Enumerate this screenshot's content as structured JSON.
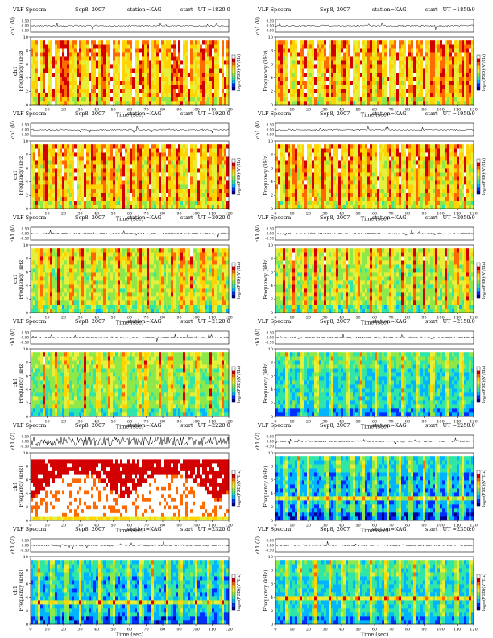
{
  "figure": {
    "title_prefix": "VLF Spectra",
    "date": "Sep8, 2007",
    "station": "station=KAG",
    "start_label": "start",
    "ut_label": "UT ="
  },
  "colors": {
    "cmap": [
      "#00008f",
      "#0030ff",
      "#00b4ff",
      "#2fe6a8",
      "#8fe84a",
      "#e6f03a",
      "#ffd400",
      "#ff6a00",
      "#d20000",
      "#ffffff"
    ],
    "waveform": "#000000",
    "axis": "#000000"
  },
  "chart_data": [
    {
      "type": "heatmap",
      "title": "VLF Spectra",
      "start_ut": "1820:0",
      "xlabel": "Time (sec)",
      "ylabel": "Frequency (kHz)",
      "channel_label": "ch1",
      "waveform_label": "ch1 (V)",
      "colorbar_label": "log₁₀(PSD)(V²/Hz)",
      "xlim": [
        0,
        120
      ],
      "ylim": [
        0,
        10
      ],
      "x_ticks": [
        0,
        10,
        20,
        30,
        40,
        50,
        60,
        70,
        80,
        90,
        100,
        110,
        120
      ],
      "y_ticks": [
        0,
        2,
        4,
        6,
        8,
        10
      ],
      "waveform_ticks": [
        "0.50",
        "0.00",
        "-0.50"
      ],
      "mean_level": 6,
      "low_cut_khz": 9.5,
      "fill_color": "",
      "noise_line_khz": null,
      "burst_times": [
        5,
        9,
        14,
        19,
        22,
        29,
        36,
        40,
        44,
        49,
        55,
        62,
        67,
        72,
        78,
        86,
        88,
        91,
        96,
        104,
        110,
        115,
        118
      ]
    },
    {
      "type": "heatmap",
      "title": "VLF Spectra",
      "start_ut": "1850:0",
      "xlabel": "Time (sec)",
      "ylabel": "Frequency (kHz)",
      "channel_label": "",
      "waveform_label": "ch1 (V)",
      "colorbar_label": "log₁₀(PSD)(V²/Hz)",
      "xlim": [
        0,
        120
      ],
      "ylim": [
        0,
        10
      ],
      "x_ticks": [
        0,
        10,
        20,
        30,
        40,
        50,
        60,
        70,
        80,
        90,
        100,
        110,
        120
      ],
      "y_ticks": [
        0,
        2,
        4,
        6,
        8,
        10
      ],
      "waveform_ticks": [
        "0.50",
        "0.00",
        "-0.50"
      ],
      "mean_level": 5.8,
      "low_cut_khz": 9.5,
      "fill_color": "",
      "noise_line_khz": null,
      "burst_times": [
        3,
        8,
        14,
        18,
        24,
        31,
        35,
        41,
        46,
        52,
        57,
        63,
        68,
        74,
        80,
        84,
        90,
        95,
        101,
        107,
        113,
        117
      ]
    },
    {
      "type": "heatmap",
      "title": "VLF Spectra",
      "start_ut": "1920:0",
      "xlabel": "Time (sec)",
      "ylabel": "Frequency (kHz)",
      "channel_label": "ch1",
      "waveform_label": "ch1 (V)",
      "colorbar_label": "log₁₀(PSD)(V²/Hz)",
      "xlim": [
        0,
        120
      ],
      "ylim": [
        0,
        10
      ],
      "x_ticks": [
        0,
        10,
        20,
        30,
        40,
        50,
        60,
        70,
        80,
        90,
        100,
        110,
        120
      ],
      "y_ticks": [
        0,
        2,
        4,
        6,
        8,
        10
      ],
      "waveform_ticks": [
        "0.50",
        "0.00",
        "-0.50"
      ],
      "mean_level": 5.7,
      "low_cut_khz": 9.5,
      "fill_color": "",
      "noise_line_khz": null,
      "burst_times": [
        4,
        9,
        15,
        20,
        27,
        33,
        38,
        44,
        50,
        56,
        61,
        66,
        72,
        78,
        83,
        89,
        96,
        102,
        108,
        114,
        119
      ]
    },
    {
      "type": "heatmap",
      "title": "VLF Spectra",
      "start_ut": "1950:0",
      "xlabel": "Time (sec)",
      "ylabel": "Frequency (kHz)",
      "channel_label": "",
      "waveform_label": "ch1 (V)",
      "colorbar_label": "log₁₀(PSD)(V²/Hz)",
      "xlim": [
        0,
        120
      ],
      "ylim": [
        0,
        10
      ],
      "x_ticks": [
        0,
        10,
        20,
        30,
        40,
        50,
        60,
        70,
        80,
        90,
        100,
        110,
        120
      ],
      "y_ticks": [
        0,
        2,
        4,
        6,
        8,
        10
      ],
      "waveform_ticks": [
        "0.50",
        "0.00",
        "-0.50"
      ],
      "mean_level": 5.6,
      "low_cut_khz": 9.5,
      "fill_color": "",
      "noise_line_khz": null,
      "burst_times": [
        2,
        7,
        12,
        18,
        23,
        29,
        34,
        39,
        45,
        51,
        57,
        62,
        69,
        75,
        80,
        86,
        92,
        98,
        104,
        110,
        115
      ]
    },
    {
      "type": "heatmap",
      "title": "VLF Spectra",
      "start_ut": "2020:0",
      "xlabel": "Time (sec)",
      "ylabel": "Frequency (kHz)",
      "channel_label": "ch1",
      "waveform_label": "ch1 (V)",
      "colorbar_label": "log₁₀(PSD)(V²/Hz)",
      "xlim": [
        0,
        120
      ],
      "ylim": [
        0,
        10
      ],
      "x_ticks": [
        0,
        10,
        20,
        30,
        40,
        50,
        60,
        70,
        80,
        90,
        100,
        110,
        120
      ],
      "y_ticks": [
        0,
        2,
        4,
        6,
        8,
        10
      ],
      "waveform_ticks": [
        "0.50",
        "0.00",
        "-0.50"
      ],
      "mean_level": 4.8,
      "low_cut_khz": 9.5,
      "fill_color": "",
      "noise_line_khz": null,
      "burst_times": [
        6,
        12,
        17,
        25,
        31,
        38,
        45,
        53,
        60,
        66,
        71,
        79,
        86,
        92,
        97,
        104,
        111,
        117
      ]
    },
    {
      "type": "heatmap",
      "title": "VLF Spectra",
      "start_ut": "2050:0",
      "xlabel": "Time (sec)",
      "ylabel": "Frequency (kHz)",
      "channel_label": "",
      "waveform_label": "ch1 (V)",
      "colorbar_label": "log₁₀(PSD)(V²/Hz)",
      "xlim": [
        0,
        120
      ],
      "ylim": [
        0,
        10
      ],
      "x_ticks": [
        0,
        10,
        20,
        30,
        40,
        50,
        60,
        70,
        80,
        90,
        100,
        110,
        120
      ],
      "y_ticks": [
        0,
        2,
        4,
        6,
        8,
        10
      ],
      "waveform_ticks": [
        "0.50",
        "0.00",
        "-0.50"
      ],
      "mean_level": 4.6,
      "low_cut_khz": 9.5,
      "fill_color": "",
      "noise_line_khz": null,
      "burst_times": [
        5,
        11,
        18,
        24,
        30,
        37,
        43,
        50,
        58,
        63,
        70,
        77,
        84,
        90,
        97,
        103,
        110,
        116
      ]
    },
    {
      "type": "heatmap",
      "title": "VLF Spectra",
      "start_ut": "2120:0",
      "xlabel": "Time (sec)",
      "ylabel": "Frequency (kHz)",
      "channel_label": "ch1",
      "waveform_label": "ch1 (V)",
      "colorbar_label": "log₁₀(PSD)(V²/Hz)",
      "xlim": [
        0,
        120
      ],
      "ylim": [
        0,
        10
      ],
      "x_ticks": [
        0,
        10,
        20,
        30,
        40,
        50,
        60,
        70,
        80,
        90,
        100,
        110,
        120
      ],
      "y_ticks": [
        0,
        2,
        4,
        6,
        8,
        10
      ],
      "waveform_ticks": [
        "0.50",
        "0.00",
        "-0.50"
      ],
      "mean_level": 4.2,
      "low_cut_khz": 9.5,
      "fill_color": "",
      "noise_line_khz": null,
      "burst_times": [
        8,
        15,
        22,
        33,
        41,
        48,
        57,
        66,
        70,
        78,
        85,
        93,
        101,
        109,
        116
      ]
    },
    {
      "type": "heatmap",
      "title": "VLF Spectra",
      "start_ut": "2150:0",
      "xlabel": "Time (sec)",
      "ylabel": "Frequency (kHz)",
      "channel_label": "",
      "waveform_label": "ch1 (V)",
      "colorbar_label": "log₁₀(PSD)(V²/Hz)",
      "xlim": [
        0,
        120
      ],
      "ylim": [
        0,
        10
      ],
      "x_ticks": [
        0,
        10,
        20,
        30,
        40,
        50,
        60,
        70,
        80,
        90,
        100,
        110,
        120
      ],
      "y_ticks": [
        0,
        2,
        4,
        6,
        8,
        10
      ],
      "waveform_ticks": [
        "0.50",
        "0.00",
        "-0.50"
      ],
      "mean_level": 3.2,
      "low_cut_khz": 9.5,
      "fill_color": "",
      "noise_line_khz": null,
      "burst_times": [
        7,
        16,
        25,
        34,
        44,
        52,
        61,
        69,
        77,
        86,
        95,
        104,
        113
      ]
    },
    {
      "type": "heatmap",
      "title": "VLF Spectra",
      "start_ut": "2220:0",
      "xlabel": "Time (sec)",
      "ylabel": "Frequency (kHz)",
      "channel_label": "ch1",
      "waveform_label": "ch1 (V)",
      "colorbar_label": "log₁₀(PSD)(V²/Hz)",
      "xlim": [
        0,
        120
      ],
      "ylim": [
        0,
        10
      ],
      "x_ticks": [
        0,
        10,
        20,
        30,
        40,
        50,
        60,
        70,
        80,
        90,
        100,
        110,
        120
      ],
      "y_ticks": [
        0,
        2,
        4,
        6,
        8,
        10
      ],
      "waveform_ticks": [
        "0.50",
        "0.00",
        "-0.50"
      ],
      "mean_level": 8.5,
      "low_cut_khz": 9.0,
      "fill_color": "#ffffff",
      "noise_line_khz": null,
      "burst_times": [
        10,
        25,
        40,
        55,
        70,
        85,
        100,
        115
      ]
    },
    {
      "type": "heatmap",
      "title": "VLF Spectra",
      "start_ut": "2250:0",
      "xlabel": "Time (sec)",
      "ylabel": "Frequency (kHz)",
      "channel_label": "",
      "waveform_label": "ch1 (V)",
      "colorbar_label": "log₁₀(PSD)(V²/Hz)",
      "xlim": [
        0,
        120
      ],
      "ylim": [
        0,
        10
      ],
      "x_ticks": [
        0,
        10,
        20,
        30,
        40,
        50,
        60,
        70,
        80,
        90,
        100,
        110,
        120
      ],
      "y_ticks": [
        0,
        2,
        4,
        6,
        8,
        10
      ],
      "waveform_ticks": [
        "0.50",
        "0.00",
        "-0.50"
      ],
      "mean_level": 2.4,
      "low_cut_khz": 9.5,
      "fill_color": "",
      "noise_line_khz": 3.5,
      "burst_times": [
        6,
        14,
        20,
        31,
        38,
        47,
        53,
        60,
        68,
        75,
        82,
        90,
        98,
        105,
        113
      ]
    },
    {
      "type": "heatmap",
      "title": "VLF Spectra",
      "start_ut": "2320:0",
      "xlabel": "Time (sec)",
      "ylabel": "Frequency (kHz)",
      "channel_label": "ch1",
      "waveform_label": "ch1 (V)",
      "colorbar_label": "log₁₀(PSD)(V²/Hz)",
      "xlim": [
        0,
        120
      ],
      "ylim": [
        0,
        10
      ],
      "x_ticks": [
        0,
        10,
        20,
        30,
        40,
        50,
        60,
        70,
        80,
        90,
        100,
        110,
        120
      ],
      "y_ticks": [
        0,
        2,
        4,
        6,
        8,
        10
      ],
      "waveform_ticks": [
        "0.50",
        "0.00",
        "-0.50"
      ],
      "mean_level": 2.6,
      "low_cut_khz": 9.5,
      "fill_color": "",
      "noise_line_khz": 3.5,
      "burst_times": [
        5,
        13,
        22,
        30,
        42,
        50,
        59,
        67,
        74,
        83,
        91,
        100,
        108,
        116
      ]
    },
    {
      "type": "heatmap",
      "title": "VLF Spectra",
      "start_ut": "2350:0",
      "xlabel": "Time (sec)",
      "ylabel": "Frequency (kHz)",
      "channel_label": "",
      "waveform_label": "ch1 (V)",
      "colorbar_label": "log₁₀(PSD)(V²/Hz)",
      "xlim": [
        0,
        120
      ],
      "ylim": [
        0,
        10
      ],
      "x_ticks": [
        0,
        10,
        20,
        30,
        40,
        50,
        60,
        70,
        80,
        90,
        100,
        110,
        120
      ],
      "y_ticks": [
        0,
        2,
        4,
        6,
        8,
        10
      ],
      "waveform_ticks": [
        "0.50",
        "0.00",
        "-0.50"
      ],
      "mean_level": 3.0,
      "low_cut_khz": 9.5,
      "fill_color": "",
      "noise_line_khz": 3.8,
      "burst_times": [
        7,
        15,
        24,
        33,
        41,
        50,
        58,
        67,
        75,
        84,
        92,
        101,
        110,
        118
      ]
    }
  ]
}
